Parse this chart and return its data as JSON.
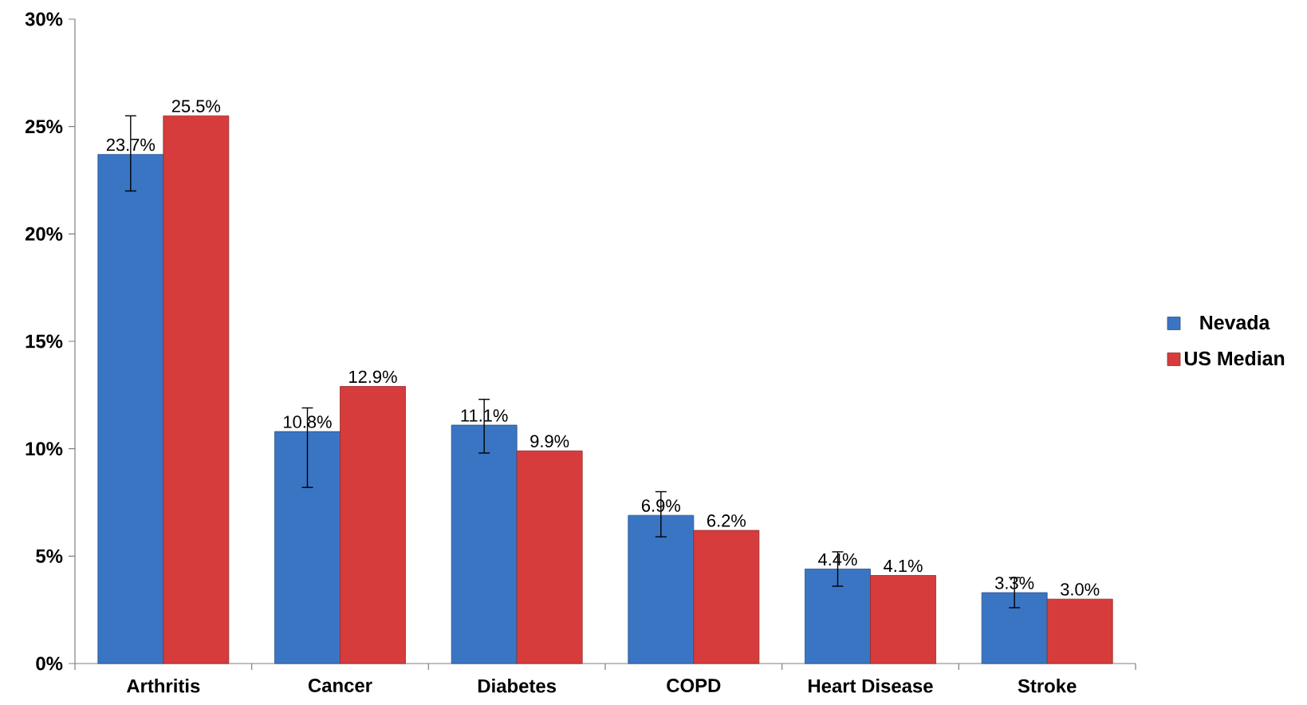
{
  "chart_data": {
    "type": "bar",
    "categories": [
      "Arthritis",
      "Cancer",
      "Diabetes",
      "COPD",
      "Heart Disease",
      "Stroke"
    ],
    "series": [
      {
        "name": "Nevada",
        "color": "#3a75c4",
        "values": [
          23.7,
          10.8,
          11.1,
          6.9,
          4.4,
          3.3
        ],
        "errors": [
          [
            22.0,
            25.5
          ],
          [
            8.2,
            11.9
          ],
          [
            9.8,
            12.3
          ],
          [
            5.9,
            8.0
          ],
          [
            3.6,
            5.2
          ],
          [
            2.6,
            4.0
          ]
        ],
        "value_labels": [
          "23.7%",
          "10.8%",
          "11.1%",
          "6.9%",
          "4.4%",
          "3.3%"
        ]
      },
      {
        "name": "US Median",
        "color": "#d63c3c",
        "values": [
          25.5,
          12.9,
          9.9,
          6.2,
          4.1,
          3.0
        ],
        "value_labels": [
          "25.5%",
          "12.9%",
          "9.9%",
          "6.2%",
          "4.1%",
          "3.0%"
        ]
      }
    ],
    "ylim": [
      0,
      30
    ],
    "yticks": [
      {
        "value": 0,
        "label": "0%"
      },
      {
        "value": 5,
        "label": "5%"
      },
      {
        "value": 10,
        "label": "10%"
      },
      {
        "value": 15,
        "label": "15%"
      },
      {
        "value": 20,
        "label": "20%"
      },
      {
        "value": 25,
        "label": "25%"
      },
      {
        "value": 30,
        "label": "30%"
      }
    ],
    "grid": false,
    "legend": "right"
  }
}
